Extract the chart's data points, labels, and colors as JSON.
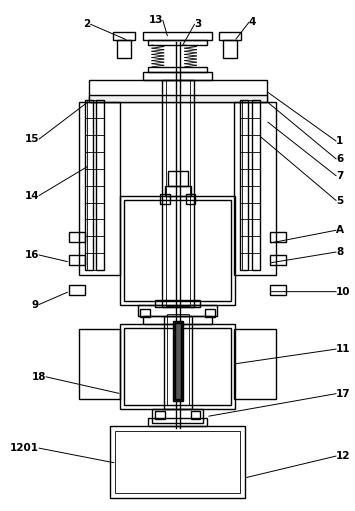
{
  "bg_color": "#ffffff",
  "line_color": "#000000",
  "lw": 1.0,
  "tlw": 0.6
}
